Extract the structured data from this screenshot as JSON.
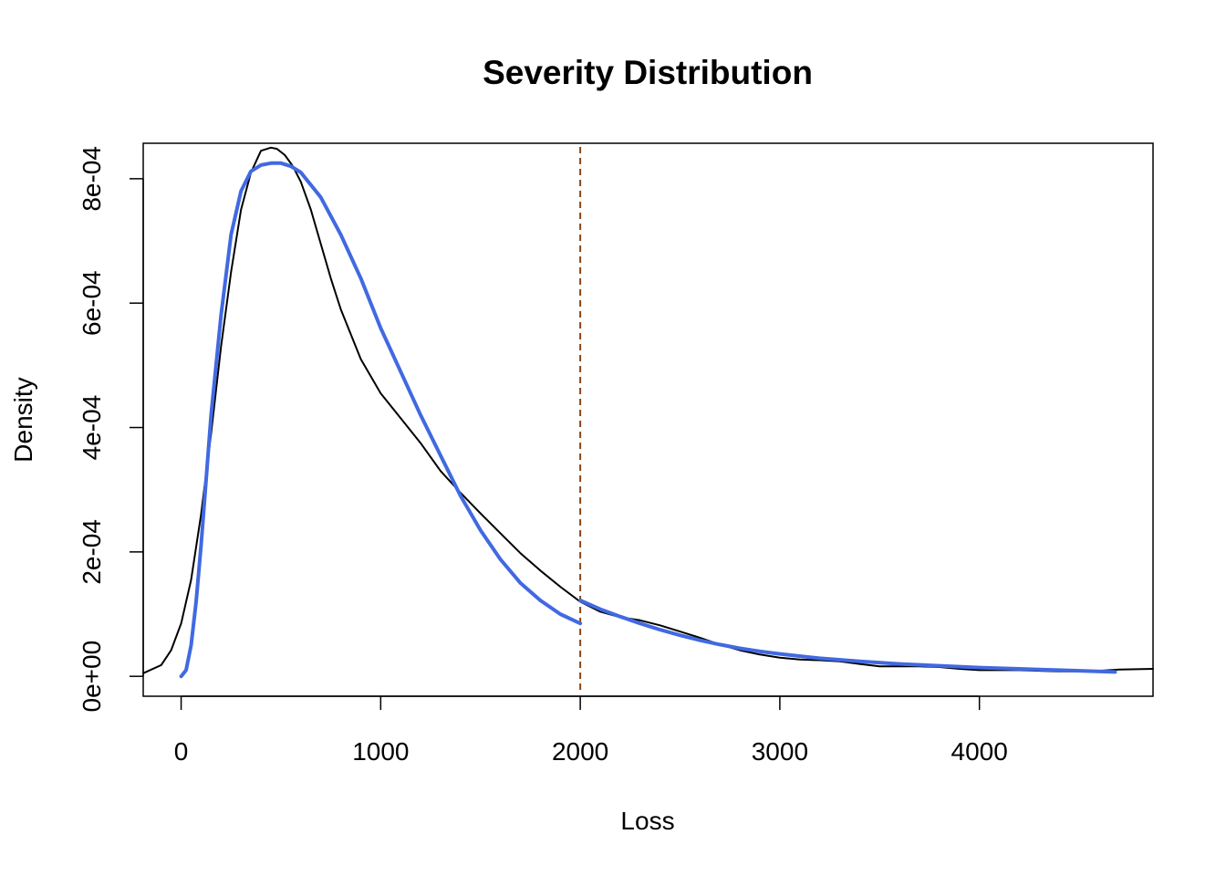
{
  "chart_data": {
    "type": "line",
    "title": "Severity Distribution",
    "xlabel": "Loss",
    "ylabel": "Density",
    "xlim": [
      -190,
      4870
    ],
    "ylim": [
      -3.2e-05,
      0.000857
    ],
    "x_ticks": [
      0,
      1000,
      2000,
      3000,
      4000
    ],
    "x_tick_labels": [
      "0",
      "1000",
      "2000",
      "3000",
      "4000"
    ],
    "y_ticks": [
      0,
      0.0002,
      0.0004,
      0.0006,
      0.0008
    ],
    "y_tick_labels": [
      "0e+00",
      "2e-04",
      "4e-04",
      "6e-04",
      "8e-04"
    ],
    "grid": false,
    "legend": "none",
    "reference_lines": [
      {
        "axis": "x",
        "value": 2000,
        "style": "dashed",
        "color": "#8B4513"
      }
    ],
    "series": [
      {
        "color": "#000000",
        "style": "solid",
        "x": [
          -190,
          -100,
          -50,
          0,
          50,
          100,
          150,
          200,
          250,
          300,
          350,
          400,
          450,
          480,
          520,
          560,
          600,
          650,
          700,
          750,
          800,
          900,
          1000,
          1100,
          1200,
          1300,
          1400,
          1500,
          1600,
          1700,
          1800,
          1900,
          2000,
          2100,
          2200,
          2300,
          2400,
          2500,
          2600,
          2700,
          2800,
          2900,
          3000,
          3100,
          3200,
          3300,
          3400,
          3500,
          3600,
          3700,
          3800,
          3900,
          4000,
          4100,
          4200,
          4300,
          4400,
          4500,
          4600,
          4700,
          4870
        ],
        "y": [
          5e-06,
          1.8e-05,
          4.2e-05,
          8.5e-05,
          0.000155,
          0.00026,
          0.00039,
          0.00053,
          0.00065,
          0.00075,
          0.00081,
          0.000845,
          0.00085,
          0.000848,
          0.000838,
          0.00082,
          0.000795,
          0.00075,
          0.000695,
          0.00064,
          0.00059,
          0.00051,
          0.000455,
          0.000415,
          0.000375,
          0.00033,
          0.000295,
          0.000262,
          0.00023,
          0.000198,
          0.00017,
          0.000144,
          0.00012,
          0.000104,
          9.5e-05,
          9e-05,
          8.2e-05,
          7.2e-05,
          6.2e-05,
          5.1e-05,
          4.2e-05,
          3.5e-05,
          3e-05,
          2.7e-05,
          2.6e-05,
          2.4e-05,
          2e-05,
          1.6e-05,
          1.6e-05,
          1.6e-05,
          1.5e-05,
          1.2e-05,
          1e-05,
          1e-05,
          1e-05,
          9e-06,
          8e-06,
          8e-06,
          9e-06,
          1.1e-05,
          1.2e-05
        ]
      },
      {
        "color": "#4169E1",
        "style": "solid",
        "x": [
          0,
          25,
          50,
          75,
          100,
          150,
          200,
          250,
          300,
          350,
          400,
          450,
          500,
          550,
          600,
          700,
          800,
          900,
          1000,
          1100,
          1200,
          1300,
          1400,
          1500,
          1600,
          1700,
          1800,
          1900,
          2000
        ],
        "y": [
          0,
          1e-05,
          5e-05,
          0.00012,
          0.00021,
          0.00042,
          0.00058,
          0.00071,
          0.00078,
          0.000812,
          0.000822,
          0.000825,
          0.000825,
          0.00082,
          0.00081,
          0.00077,
          0.00071,
          0.00064,
          0.00056,
          0.00049,
          0.00042,
          0.000355,
          0.00029,
          0.000235,
          0.000188,
          0.00015,
          0.000122,
          0.0001,
          8.5e-05
        ]
      },
      {
        "color": "#4169E1",
        "style": "solid",
        "x": [
          2000,
          2100,
          2200,
          2300,
          2400,
          2500,
          2600,
          2700,
          2800,
          2900,
          3000,
          3200,
          3400,
          3600,
          3800,
          4000,
          4200,
          4400,
          4680
        ],
        "y": [
          0.000122,
          0.000108,
          9.6e-05,
          8.5e-05,
          7.5e-05,
          6.6e-05,
          5.8e-05,
          5.1e-05,
          4.5e-05,
          4e-05,
          3.6e-05,
          2.9e-05,
          2.4e-05,
          2e-05,
          1.7e-05,
          1.4e-05,
          1.2e-05,
          1e-05,
          7e-06
        ]
      }
    ]
  }
}
